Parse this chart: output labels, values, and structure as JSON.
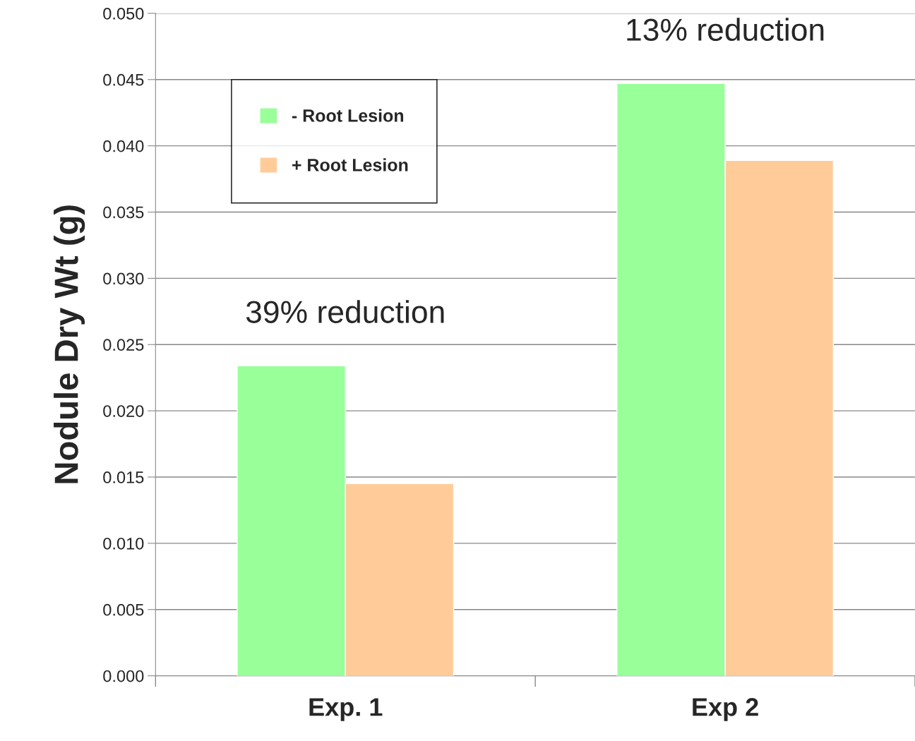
{
  "chart_data": {
    "type": "bar",
    "ylabel": "Nodule Dry Wt (g)",
    "categories": [
      "Exp. 1",
      "Exp 2"
    ],
    "series": [
      {
        "name": "- Root Lesion",
        "color": "#99ff99",
        "values": [
          0.0234,
          0.0447
        ]
      },
      {
        "name": "+ Root Lesion",
        "color": "#ffcc99",
        "values": [
          0.0145,
          0.0389
        ]
      }
    ],
    "ylim": [
      0,
      0.05
    ],
    "yticks": [
      {
        "value": 0,
        "label": "0.000"
      },
      {
        "value": 0.005,
        "label": "0.005"
      },
      {
        "value": 0.01,
        "label": "0.010"
      },
      {
        "value": 0.015,
        "label": "0.015"
      },
      {
        "value": 0.02,
        "label": "0.020"
      },
      {
        "value": 0.025,
        "label": "0.025"
      },
      {
        "value": 0.03,
        "label": "0.030"
      },
      {
        "value": 0.035,
        "label": "0.035"
      },
      {
        "value": 0.04,
        "label": "0.040"
      },
      {
        "value": 0.045,
        "label": "0.045"
      },
      {
        "value": 0.05,
        "label": "0.050"
      }
    ],
    "annotations": [
      "39% reduction",
      "13% reduction"
    ],
    "grid": "y",
    "legend": "top left"
  }
}
